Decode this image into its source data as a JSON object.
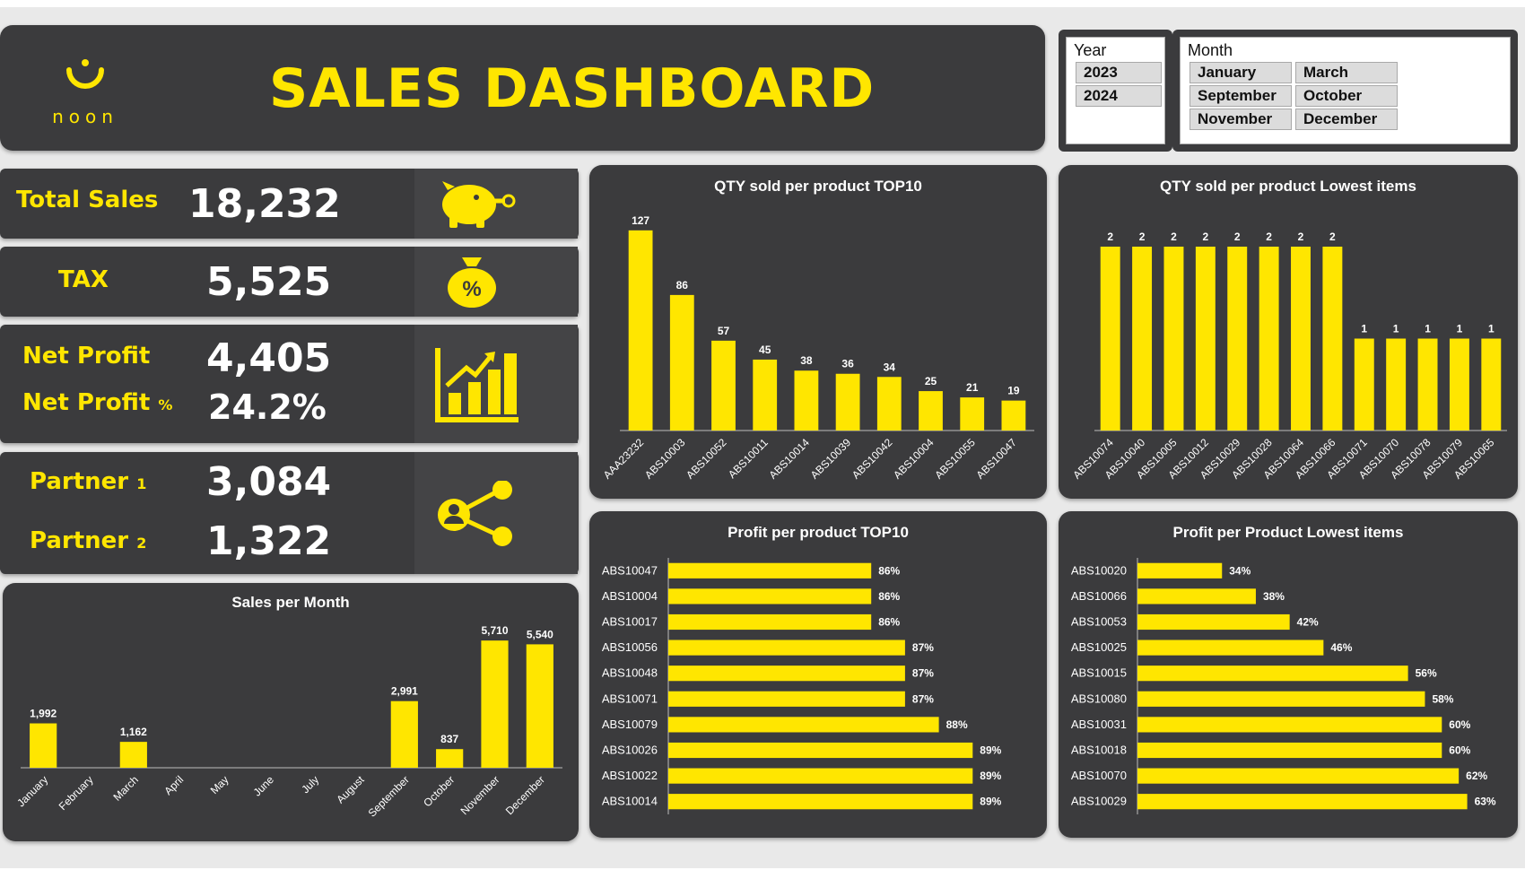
{
  "header": {
    "logo_text": "noon",
    "title": "SALES DASHBOARD"
  },
  "slicers": {
    "year": {
      "title": "Year",
      "items": [
        "2023",
        "2024"
      ]
    },
    "month": {
      "title": "Month",
      "items": [
        "January",
        "March",
        "September",
        "October",
        "November",
        "December"
      ]
    }
  },
  "kpis": {
    "total_sales": {
      "label": "Total Sales",
      "value": "18,232",
      "icon": "piggy-bank-icon"
    },
    "tax": {
      "label": "TAX",
      "value": "5,525",
      "icon": "money-bag-percent-icon"
    },
    "net_profit": {
      "label": "Net Profit",
      "value": "4,405",
      "pct_label": "Net Profit",
      "pct_symbol": "%",
      "pct_value": "24.2%",
      "icon": "growth-chart-icon"
    },
    "partners": {
      "p1_label": "Partner",
      "p1_num": "1",
      "p1_value": "3,084",
      "p2_label": "Partner",
      "p2_num": "2",
      "p2_value": "1,322",
      "icon": "share-user-icon"
    }
  },
  "colors": {
    "panel": "#3b3b3d",
    "accent": "#ffe600",
    "text": "#ffffff"
  },
  "chart_data": [
    {
      "id": "qty_top10",
      "type": "bar",
      "title": "QTY sold per product TOP10",
      "categories": [
        "AAA23232",
        "ABS10003",
        "ABS10052",
        "ABS10011",
        "ABS10014",
        "ABS10039",
        "ABS10042",
        "ABS10004",
        "ABS10055",
        "ABS10047"
      ],
      "values": [
        127,
        86,
        57,
        45,
        38,
        36,
        34,
        25,
        21,
        19
      ],
      "ylim": [
        0,
        140
      ]
    },
    {
      "id": "qty_lowest",
      "type": "bar",
      "title": "QTY sold per product Lowest items",
      "categories": [
        "ABS10074",
        "ABS10040",
        "ABS10005",
        "ABS10012",
        "ABS10029",
        "ABS10028",
        "ABS10064",
        "ABS10066",
        "ABS10071",
        "ABS10070",
        "ABS10078",
        "ABS10079",
        "ABS10065"
      ],
      "values": [
        2,
        2,
        2,
        2,
        2,
        2,
        2,
        2,
        1,
        1,
        1,
        1,
        1
      ],
      "ylim": [
        0,
        2.4
      ]
    },
    {
      "id": "sales_month",
      "type": "bar",
      "title": "Sales per Month",
      "categories": [
        "January",
        "February",
        "March",
        "April",
        "May",
        "June",
        "July",
        "August",
        "September",
        "October",
        "November",
        "December"
      ],
      "values": [
        1992,
        null,
        1162,
        null,
        null,
        null,
        null,
        null,
        2991,
        837,
        5710,
        5540
      ],
      "labels": [
        "1,992",
        "",
        "1,162",
        "",
        "",
        "",
        "",
        "",
        "2,991",
        "837",
        "5,710",
        "5,540"
      ],
      "ylim": [
        0,
        6200
      ]
    },
    {
      "id": "profit_top10",
      "type": "bar",
      "orientation": "horizontal",
      "title": "Profit per product TOP10",
      "categories": [
        "ABS10047",
        "ABS10004",
        "ABS10017",
        "ABS10056",
        "ABS10048",
        "ABS10071",
        "ABS10079",
        "ABS10026",
        "ABS10022",
        "ABS10014"
      ],
      "values": [
        86,
        86,
        86,
        87,
        87,
        87,
        88,
        89,
        89,
        89
      ],
      "labels": [
        "86%",
        "86%",
        "86%",
        "87%",
        "87%",
        "87%",
        "88%",
        "89%",
        "89%",
        "89%"
      ],
      "xlim": [
        80,
        90
      ]
    },
    {
      "id": "profit_lowest",
      "type": "bar",
      "orientation": "horizontal",
      "title": "Profit per Product Lowest items",
      "categories": [
        "ABS10020",
        "ABS10066",
        "ABS10053",
        "ABS10025",
        "ABS10015",
        "ABS10080",
        "ABS10031",
        "ABS10018",
        "ABS10070",
        "ABS10029"
      ],
      "values": [
        34,
        38,
        42,
        46,
        56,
        58,
        60,
        60,
        62,
        63
      ],
      "labels": [
        "34%",
        "38%",
        "42%",
        "46%",
        "56%",
        "58%",
        "60%",
        "60%",
        "62%",
        "63%"
      ],
      "xlim": [
        24,
        64
      ]
    }
  ]
}
